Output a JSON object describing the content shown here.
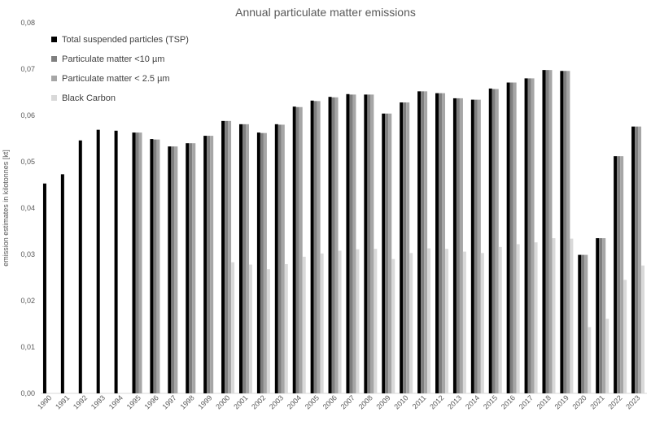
{
  "chart_data": {
    "type": "bar",
    "title": "Annual particulate matter emissions",
    "xlabel": "",
    "ylabel": "emission estimates in kilotonnes [kt]",
    "ylim": [
      0,
      0.08
    ],
    "y_ticks": [
      "0,00",
      "0,01",
      "0,02",
      "0,03",
      "0,04",
      "0,05",
      "0,06",
      "0,07",
      "0,08"
    ],
    "grid": false,
    "legend_position": "top-left",
    "categories": [
      "1990",
      "1991",
      "1992",
      "1993",
      "1994",
      "1995",
      "1996",
      "1997",
      "1998",
      "1999",
      "2000",
      "2001",
      "2002",
      "2003",
      "2004",
      "2005",
      "2006",
      "2007",
      "2008",
      "2009",
      "2010",
      "2011",
      "2012",
      "2013",
      "2014",
      "2015",
      "2016",
      "2017",
      "2018",
      "2019",
      "2020",
      "2021",
      "2022",
      "2023"
    ],
    "series": [
      {
        "name": "Total suspended particles (TSP)",
        "color": "#000000",
        "values": [
          0.0453,
          0.0473,
          0.0546,
          0.0569,
          0.0567,
          0.0563,
          0.0549,
          0.0533,
          0.054,
          0.0556,
          0.0588,
          0.0581,
          0.0563,
          0.0581,
          0.0619,
          0.0632,
          0.064,
          0.0646,
          0.0645,
          0.0604,
          0.0628,
          0.0652,
          0.0648,
          0.0637,
          0.0634,
          0.0658,
          0.0671,
          0.068,
          0.0698,
          0.0696,
          0.0299,
          0.0335,
          0.0512,
          0.0576
        ]
      },
      {
        "name": "Particulate matter <10 µm",
        "color": "#7f7f7f",
        "values": [
          null,
          null,
          null,
          null,
          null,
          0.0563,
          0.0548,
          0.0533,
          0.054,
          0.0556,
          0.0588,
          0.0581,
          0.0562,
          0.058,
          0.0618,
          0.0631,
          0.0639,
          0.0645,
          0.0645,
          0.0604,
          0.0628,
          0.0652,
          0.0648,
          0.0637,
          0.0634,
          0.0657,
          0.0671,
          0.068,
          0.0698,
          0.0696,
          0.0299,
          0.0335,
          0.0512,
          0.0576
        ]
      },
      {
        "name": "Particulate matter < 2.5 µm",
        "color": "#a6a6a6",
        "values": [
          null,
          null,
          null,
          null,
          null,
          0.0563,
          0.0548,
          0.0533,
          0.054,
          0.0556,
          0.0588,
          0.0581,
          0.0562,
          0.058,
          0.0618,
          0.0631,
          0.0639,
          0.0645,
          0.0645,
          0.0604,
          0.0628,
          0.0652,
          0.0648,
          0.0637,
          0.0634,
          0.0657,
          0.0671,
          0.068,
          0.0698,
          0.0696,
          0.0299,
          0.0335,
          0.0512,
          0.0576
        ]
      },
      {
        "name": "Black Carbon",
        "color": "#d9d9d9",
        "values": [
          null,
          null,
          null,
          null,
          null,
          null,
          null,
          null,
          null,
          null,
          0.0283,
          0.0278,
          0.0268,
          0.0279,
          0.0295,
          0.0302,
          0.0308,
          0.0311,
          0.0312,
          0.029,
          0.0303,
          0.0313,
          0.0312,
          0.0306,
          0.0303,
          0.0316,
          0.0322,
          0.0326,
          0.0335,
          0.0334,
          0.0143,
          0.0161,
          0.0245,
          0.0276
        ]
      }
    ]
  }
}
